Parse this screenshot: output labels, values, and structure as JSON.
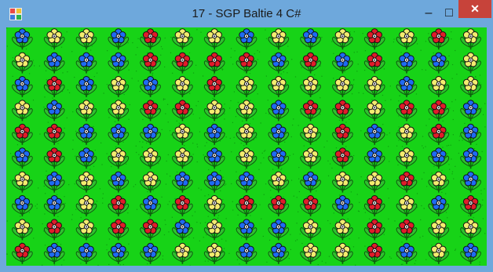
{
  "window": {
    "title": "17 - SGP Baltie 4 C#",
    "minimize_glyph": "–",
    "maximize_glyph": "□",
    "close_glyph": "✕"
  },
  "icons": {
    "app": "baltie-app-icon"
  },
  "colors": {
    "frame": "#6ea8dc",
    "close": "#c7433a",
    "grass": "#17d317",
    "grass_dark": "#0e9e10",
    "stem": "#0f5a0f",
    "leaf": "#2fc12f",
    "center": "#1a1a1a",
    "flower": {
      "B": "#1f6bf2",
      "R": "#e01c2a",
      "Y": "#f3ec6f"
    }
  },
  "scene": {
    "legend": {
      "B": "blue-flower",
      "R": "red-flower",
      "Y": "yellow-flower"
    },
    "rows": [
      "BYYBRYYBYBYRYRY",
      "YBBBRRRRBRBRBBY",
      "BRBYBYRYYYYYBYY",
      "YBYYRRYYBRRYRRB",
      "RRBBBYBYBYRBYRB",
      "BRBYYYBYBYRBYBB",
      "YBYBYBBBYBYYRYB",
      "BBYRBRYRRRBRYBR",
      "YRYRRBYBBYYRRYY",
      "RBBBBYYBBYYRBYB"
    ]
  }
}
